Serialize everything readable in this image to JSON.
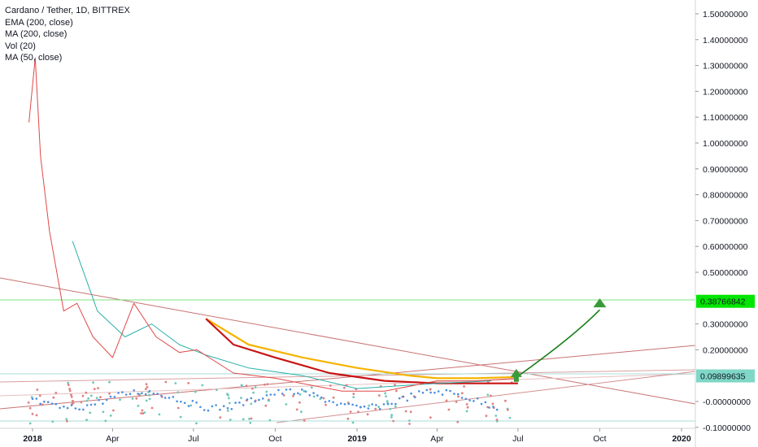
{
  "legend": {
    "title": "Cardano / Tether, 1D, BITTREX",
    "ema": "EMA (200, close)",
    "ma": "MA (200, close)",
    "vol": "Vol (20)",
    "ma50": "MA (50, close)"
  },
  "chart_data": {
    "type": "line",
    "title": "Cardano / Tether, 1D, BITTREX",
    "y_ticks": [
      "1.50000000",
      "1.40000000",
      "1.30000000",
      "1.20000000",
      "1.10000000",
      "1.00000000",
      "0.90000000",
      "0.80000000",
      "0.70000000",
      "0.60000000",
      "0.50000000",
      "0.30000000",
      "0.20000000",
      "-0.00000000",
      "-0.10000000"
    ],
    "y_tick_values": [
      1.5,
      1.4,
      1.3,
      1.2,
      1.1,
      1.0,
      0.9,
      0.8,
      0.7,
      0.6,
      0.5,
      0.3,
      0.2,
      0.0,
      -0.1
    ],
    "x_ticks": [
      "2018",
      "Apr",
      "Jul",
      "Oct",
      "2019",
      "Apr",
      "Jul",
      "Oct",
      "2020"
    ],
    "x_tick_values": [
      "2018-01-01",
      "2018-04-01",
      "2018-07-01",
      "2018-10-01",
      "2019-01-01",
      "2019-04-01",
      "2019-07-01",
      "2019-10-01",
      "2020-01-01"
    ],
    "ylim": [
      -0.1,
      1.5
    ],
    "grid": false,
    "price_badges": [
      {
        "label": "0.38766842",
        "value": 0.38766842,
        "color": "#00e600"
      },
      {
        "label": "0.09899635",
        "value": 0.09899635,
        "color": "#7fd7c7"
      }
    ],
    "series": [
      {
        "name": "EMA (200, close)",
        "color": "#f5b400",
        "points": [
          [
            "2018-07-15",
            0.32
          ],
          [
            "2018-09-01",
            0.22
          ],
          [
            "2018-11-01",
            0.17
          ],
          [
            "2019-01-01",
            0.13
          ],
          [
            "2019-03-01",
            0.1
          ],
          [
            "2019-04-01",
            0.09
          ],
          [
            "2019-05-15",
            0.09
          ],
          [
            "2019-07-01",
            0.095
          ]
        ]
      },
      {
        "name": "MA (200, close)",
        "color": "#c81414",
        "points": [
          [
            "2018-07-15",
            0.32
          ],
          [
            "2018-08-15",
            0.22
          ],
          [
            "2018-10-01",
            0.17
          ],
          [
            "2018-12-01",
            0.11
          ],
          [
            "2019-02-01",
            0.08
          ],
          [
            "2019-04-01",
            0.07
          ],
          [
            "2019-07-01",
            0.07
          ]
        ]
      },
      {
        "name": "MA (50, close)",
        "color": "#2ab0a8",
        "points": [
          [
            "2018-02-15",
            0.62
          ],
          [
            "2018-03-15",
            0.35
          ],
          [
            "2018-04-15",
            0.25
          ],
          [
            "2018-05-15",
            0.3
          ],
          [
            "2018-06-15",
            0.22
          ],
          [
            "2018-07-15",
            0.18
          ],
          [
            "2018-09-01",
            0.13
          ],
          [
            "2018-11-01",
            0.1
          ],
          [
            "2019-01-01",
            0.05
          ],
          [
            "2019-04-01",
            0.07
          ],
          [
            "2019-06-01",
            0.08
          ]
        ]
      },
      {
        "name": "price",
        "color": "#e04848",
        "points": [
          [
            "2017-12-28",
            1.08
          ],
          [
            "2018-01-04",
            1.33
          ],
          [
            "2018-01-10",
            0.95
          ],
          [
            "2018-01-20",
            0.66
          ],
          [
            "2018-02-05",
            0.35
          ],
          [
            "2018-02-20",
            0.38
          ],
          [
            "2018-03-10",
            0.25
          ],
          [
            "2018-04-01",
            0.17
          ],
          [
            "2018-04-25",
            0.38
          ],
          [
            "2018-05-20",
            0.25
          ],
          [
            "2018-06-15",
            0.19
          ],
          [
            "2018-07-05",
            0.2
          ],
          [
            "2018-08-15",
            0.11
          ],
          [
            "2018-10-01",
            0.09
          ],
          [
            "2018-12-15",
            0.04
          ],
          [
            "2019-02-01",
            0.04
          ],
          [
            "2019-04-01",
            0.08
          ],
          [
            "2019-05-15",
            0.08
          ],
          [
            "2019-07-01",
            0.09
          ]
        ]
      }
    ],
    "forecast_arrow": {
      "color": "#1a7f1a",
      "points": [
        [
          "2019-07-01",
          0.098
        ],
        [
          "2019-09-01",
          0.25
        ],
        [
          "2019-10-01",
          0.38
        ]
      ]
    }
  }
}
